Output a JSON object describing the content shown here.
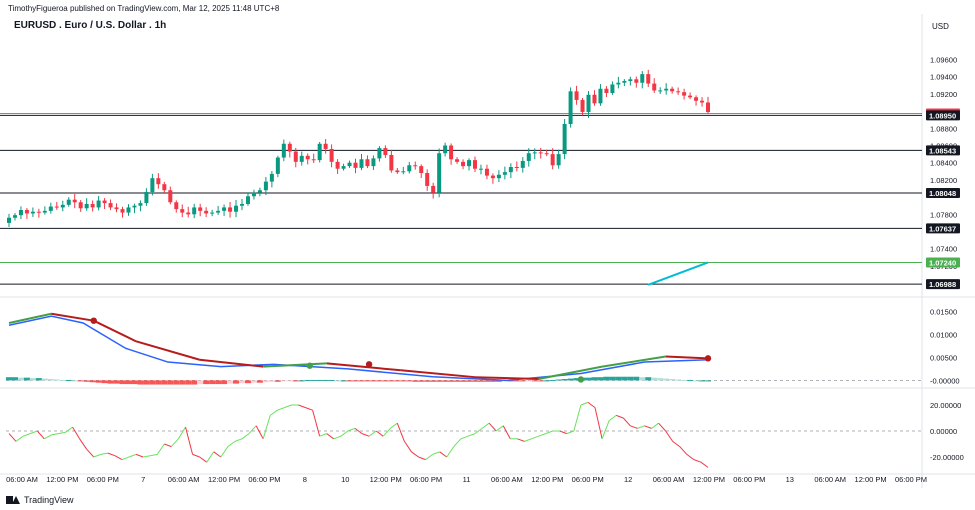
{
  "banner": "TimothyFigueroa published on TradingView.com, Mar 12, 2025 11:48 UTC+8",
  "title": "EURUSD . Euro / U.S. Dollar . 1h",
  "currency": "USD",
  "footer_logo": "TradingView",
  "colors": {
    "up": "#089981",
    "down": "#f23645",
    "ma": "#00bcd4",
    "green_line": "#4caf50",
    "macd_line": "#2962ff",
    "signal_up": "#43a047",
    "signal_down": "#b71c1c",
    "rsi_up": "#66e35a",
    "rsi_down": "#f23645"
  },
  "chart_data": [
    {
      "type": "candlestick",
      "title": "EURUSD . Euro / U.S. Dollar . 1h",
      "y_ticks": [
        "1.09600",
        "1.09400",
        "1.09200",
        "1.08800",
        "1.08600",
        "1.08400",
        "1.08200",
        "1.07800",
        "1.07400",
        "1.07200"
      ],
      "ylim": [
        1.0685,
        1.0985
      ],
      "horizontal_levels": [
        {
          "label": "1.08972",
          "value": 1.08972,
          "style": "red"
        },
        {
          "label": "1.08950",
          "value": 1.0895,
          "style": "black"
        },
        {
          "label": "1.08543",
          "value": 1.08543,
          "style": "black"
        },
        {
          "label": "1.08048",
          "value": 1.08048,
          "style": "black"
        },
        {
          "label": "1.07637",
          "value": 1.07637,
          "style": "black"
        },
        {
          "label": "1.07240",
          "value": 1.0724,
          "style": "green"
        },
        {
          "label": "1.06988",
          "value": 1.06988,
          "style": "black"
        }
      ],
      "candles_close": [
        1.0776,
        1.0779,
        1.0785,
        1.0781,
        1.0783,
        1.0782,
        1.0784,
        1.0789,
        1.0788,
        1.0791,
        1.0797,
        1.0794,
        1.0787,
        1.0792,
        1.0788,
        1.0796,
        1.0793,
        1.0788,
        1.0786,
        1.0782,
        1.0788,
        1.079,
        1.0793,
        1.0806,
        1.0822,
        1.0815,
        1.0808,
        1.0794,
        1.0786,
        1.0782,
        1.078,
        1.0788,
        1.0784,
        1.0781,
        1.0782,
        1.0784,
        1.0788,
        1.0783,
        1.079,
        1.0792,
        1.0801,
        1.0805,
        1.0808,
        1.0818,
        1.0827,
        1.0846,
        1.0862,
        1.0853,
        1.0841,
        1.0848,
        1.0844,
        1.0843,
        1.0862,
        1.0856,
        1.0841,
        1.0833,
        1.0836,
        1.084,
        1.0834,
        1.0844,
        1.0836,
        1.0845,
        1.0857,
        1.0849,
        1.0831,
        1.0829,
        1.083,
        1.0837,
        1.0836,
        1.0828,
        1.0813,
        1.0805,
        1.0851,
        1.086,
        1.0844,
        1.0841,
        1.0836,
        1.0843,
        1.0833,
        1.0833,
        1.0825,
        1.0822,
        1.0826,
        1.0829,
        1.0835,
        1.0834,
        1.0842,
        1.0851,
        1.0852,
        1.0851,
        1.085,
        1.0837,
        1.085,
        1.0885,
        1.0923,
        1.0913,
        1.0899,
        1.0919,
        1.0909,
        1.0926,
        1.0921,
        1.0931,
        1.0933,
        1.0935,
        1.0937,
        1.0933,
        1.0943,
        1.0932,
        1.0924,
        1.0924,
        1.0926,
        1.0923,
        1.0922,
        1.0918,
        1.0916,
        1.0912,
        1.091,
        1.0899
      ],
      "ma_line": [
        [
          1.0698,
          107
        ],
        [
          1.0724,
          117
        ]
      ],
      "ma_line_note": "value,candle index pairs for the cyan moving average segment"
    },
    {
      "type": "line",
      "name": "MACD panel",
      "y_ticks": [
        "0.01500",
        "0.01000",
        "0.00500",
        "-0.00000"
      ],
      "ylim": [
        -0.001,
        0.0175
      ],
      "histogram": [
        0.0007,
        0.0007,
        0.0006,
        0.0006,
        0.0005,
        0.0005,
        0.0004,
        0.0003,
        0.0002,
        0.0001,
        0.0001,
        0.0,
        -0.0002,
        -0.0003,
        -0.0004,
        -0.0005,
        -0.0006,
        -0.0007,
        -0.0007,
        -0.0008,
        -0.0008,
        -0.0008,
        -0.0009,
        -0.0009,
        -0.0009,
        -0.0009,
        -0.0009,
        -0.0009,
        -0.0009,
        -0.0009,
        -0.0009,
        -0.0009,
        -0.0008,
        -0.0008,
        -0.0008,
        -0.0008,
        -0.0008,
        -0.0007,
        -0.0007,
        -0.0006,
        -0.0006,
        -0.0005,
        -0.0005,
        -0.0004,
        -0.0003,
        -0.0003,
        -0.0002,
        -0.0001,
        -0.0001,
        0.0,
        0.0001,
        0.0001,
        0.0001,
        0.0001,
        0.0001,
        0.0,
        0.0,
        -0.0001,
        -0.0001,
        -0.0001,
        -0.0001,
        -0.0002,
        -0.0002,
        -0.0002,
        -0.0002,
        -0.0002,
        -0.0002,
        -0.0002,
        -0.0003,
        -0.0003,
        -0.0003,
        -0.0003,
        -0.0003,
        -0.0003,
        -0.0003,
        -0.0003,
        -0.0003,
        -0.0003,
        -0.0003,
        -0.0003,
        -0.0003,
        -0.0003,
        -0.0003,
        -0.0002,
        -0.0002,
        -0.0002,
        -0.0002,
        -0.0001,
        -0.0001,
        -0.0001,
        0.0,
        0.0001,
        0.0002,
        0.0003,
        0.0004,
        0.0005,
        0.0006,
        0.0006,
        0.0007,
        0.0007,
        0.0008,
        0.0008,
        0.0008,
        0.0008,
        0.0008,
        0.0008,
        0.0007,
        0.0007,
        0.0006,
        0.0005,
        0.0004,
        0.0003,
        0.0002,
        0.0001,
        0.0001,
        0.0,
        0.0,
        0.0
      ],
      "macd_line": [
        [
          0,
          0.012
        ],
        [
          20,
          0.014
        ],
        [
          35,
          0.0125
        ],
        [
          55,
          0.007
        ],
        [
          75,
          0.004
        ],
        [
          100,
          0.003
        ],
        [
          125,
          0.0035
        ],
        [
          160,
          0.0025
        ],
        [
          200,
          0.0008
        ],
        [
          235,
          0.0
        ],
        [
          270,
          0.0015
        ],
        [
          300,
          0.004
        ],
        [
          330,
          0.0045
        ]
      ],
      "signal_line": [
        [
          0,
          0.0125
        ],
        [
          20,
          0.0145
        ],
        [
          40,
          0.013
        ],
        [
          60,
          0.0085
        ],
        [
          90,
          0.0045
        ],
        [
          120,
          0.003
        ],
        [
          150,
          0.0037
        ],
        [
          185,
          0.0022
        ],
        [
          220,
          0.0007
        ],
        [
          250,
          0.0003
        ],
        [
          280,
          0.003
        ],
        [
          310,
          0.0052
        ],
        [
          330,
          0.0048
        ]
      ],
      "cross_markers": [
        [
          40,
          0.013,
          "down"
        ],
        [
          142,
          0.0032,
          "up"
        ],
        [
          170,
          0.0035,
          "down"
        ],
        [
          270,
          0.0002,
          "up"
        ],
        [
          330,
          0.0048,
          "down"
        ]
      ],
      "series_note": "macd/signal points are [x-position-index 0..330 across plot width, value]"
    },
    {
      "type": "line",
      "name": "Oscillator panel",
      "y_ticks": [
        "20.00000",
        "0.00000",
        "-20.00000"
      ],
      "ylim": [
        -30,
        30
      ],
      "values": [
        -2,
        -8,
        -4,
        -2,
        0,
        -6,
        -3,
        -2,
        -1,
        3,
        -6,
        -14,
        -20,
        -18,
        -17,
        -19,
        -22,
        -20,
        -18,
        -20,
        -19,
        -18,
        -10,
        -12,
        -6,
        3,
        -18,
        -20,
        -24,
        -16,
        -20,
        -12,
        -8,
        -6,
        -2,
        4,
        -6,
        12,
        16,
        18,
        20,
        20,
        18,
        16,
        -4,
        -2,
        -6,
        -4,
        0,
        2,
        -2,
        -4,
        0,
        -4,
        2,
        6,
        -8,
        -16,
        -20,
        -22,
        -18,
        -16,
        -20,
        -12,
        -6,
        -4,
        -2,
        2,
        6,
        0,
        4,
        -6,
        -6,
        -8,
        -6,
        -4,
        -2,
        0,
        0,
        -2,
        0,
        20,
        22,
        18,
        -6,
        8,
        12,
        10,
        4,
        2,
        4,
        2,
        6,
        0,
        -8,
        -12,
        -18,
        -22,
        -24,
        -28
      ],
      "rsi_zero": 0
    }
  ],
  "x_axis_labels": [
    "06:00 AM",
    "12:00 PM",
    "06:00 PM",
    "7",
    "06:00 AM",
    "12:00 PM",
    "06:00 PM",
    "8",
    "10",
    "12:00 PM",
    "06:00 PM",
    "11",
    "06:00 AM",
    "12:00 PM",
    "06:00 PM",
    "12",
    "06:00 AM",
    "12:00 PM",
    "06:00 PM",
    "13",
    "06:00 AM",
    "12:00 PM",
    "06:00 PM"
  ]
}
